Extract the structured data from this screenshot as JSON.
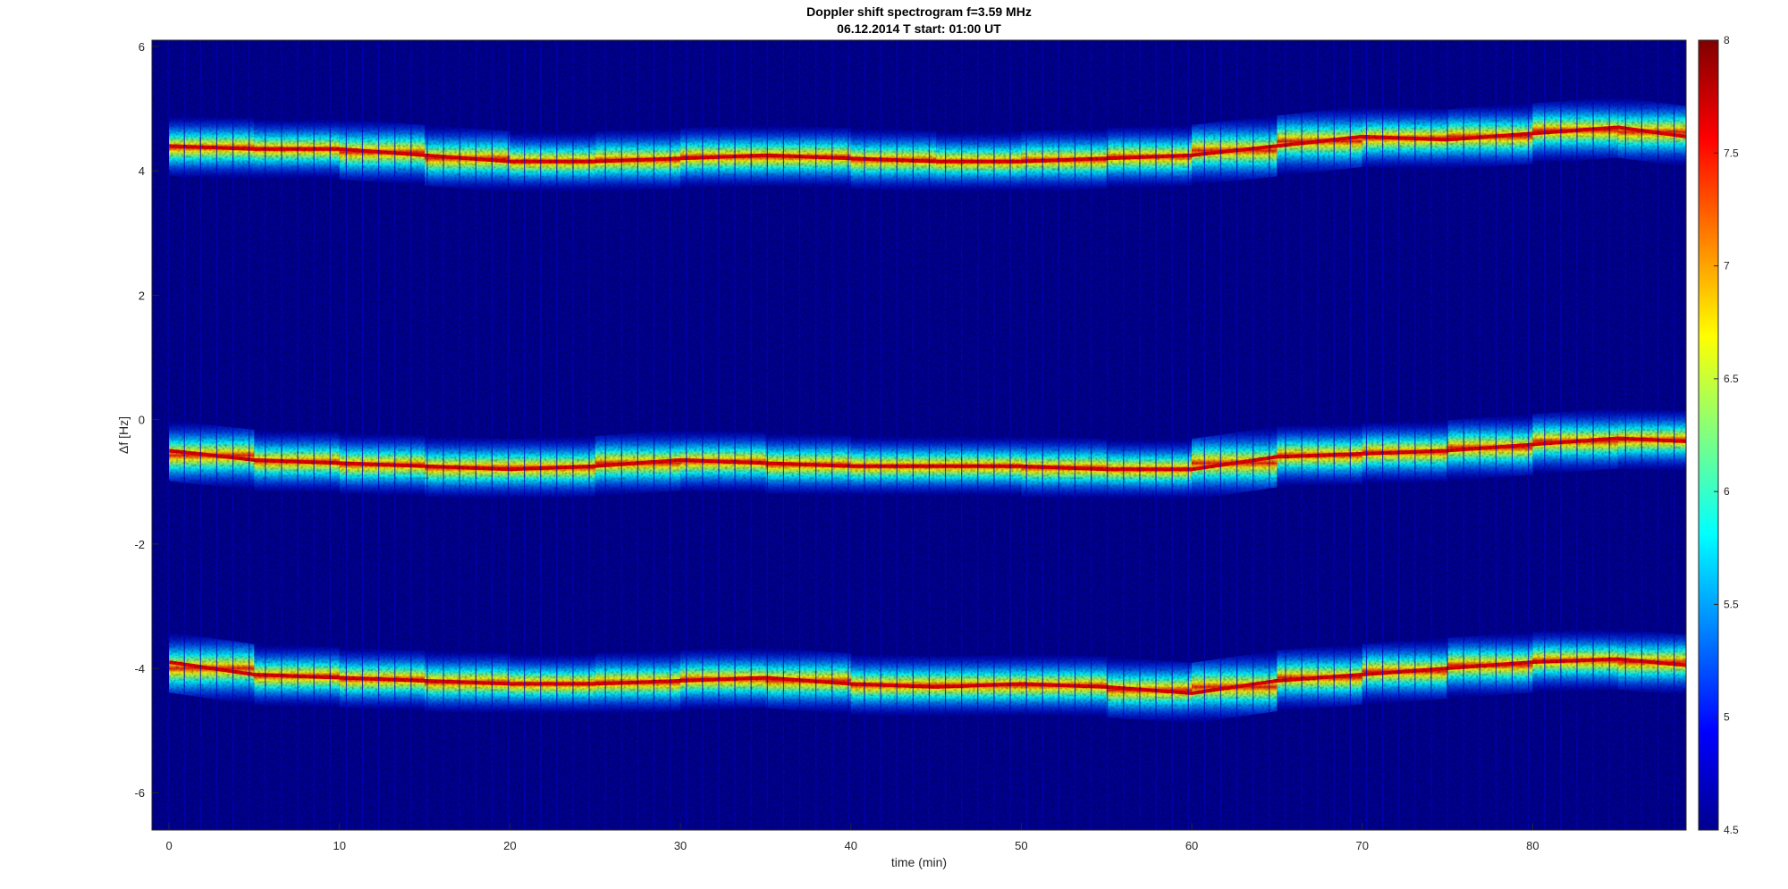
{
  "chart_data": {
    "type": "heatmap",
    "title": "Doppler shift spectrogram f=3.59 MHz",
    "subtitle": "06.12.2014   T start: 01:00 UT",
    "xlabel": "time (min)",
    "ylabel": "Δf [Hz]",
    "xlim": [
      -1,
      89
    ],
    "ylim": [
      -6.6,
      6.1
    ],
    "x_ticks": [
      0,
      10,
      20,
      30,
      40,
      50,
      60,
      70,
      80
    ],
    "y_ticks": [
      6,
      4,
      2,
      0,
      -2,
      -4,
      -6
    ],
    "colormap": "jet",
    "clim": [
      4.5,
      8
    ],
    "colorbar_ticks": [
      8,
      7.5,
      7,
      6.5,
      6,
      5.5,
      5,
      4.5
    ],
    "background_color": "#00008f",
    "series": [
      {
        "x": [
          0,
          5,
          10,
          15,
          20,
          25,
          30,
          35,
          40,
          45,
          50,
          55,
          60,
          65,
          70,
          75,
          80,
          85,
          89
        ],
        "values": [
          4.4,
          4.35,
          4.35,
          4.25,
          4.15,
          4.15,
          4.2,
          4.25,
          4.2,
          4.15,
          4.15,
          4.2,
          4.25,
          4.4,
          4.55,
          4.5,
          4.6,
          4.7,
          4.55
        ]
      },
      {
        "x": [
          0,
          5,
          10,
          15,
          20,
          25,
          30,
          35,
          40,
          45,
          50,
          55,
          60,
          65,
          70,
          75,
          80,
          85,
          89
        ],
        "values": [
          -0.5,
          -0.65,
          -0.7,
          -0.75,
          -0.8,
          -0.75,
          -0.65,
          -0.7,
          -0.75,
          -0.75,
          -0.75,
          -0.8,
          -0.8,
          -0.6,
          -0.55,
          -0.5,
          -0.4,
          -0.3,
          -0.35
        ]
      },
      {
        "x": [
          0,
          5,
          10,
          15,
          20,
          25,
          30,
          35,
          40,
          45,
          50,
          55,
          60,
          65,
          70,
          75,
          80,
          85,
          89
        ],
        "values": [
          -3.9,
          -4.1,
          -4.15,
          -4.2,
          -4.25,
          -4.25,
          -4.2,
          -4.15,
          -4.25,
          -4.3,
          -4.25,
          -4.3,
          -4.4,
          -4.2,
          -4.1,
          -4.0,
          -3.9,
          -3.85,
          -3.95
        ]
      }
    ]
  }
}
